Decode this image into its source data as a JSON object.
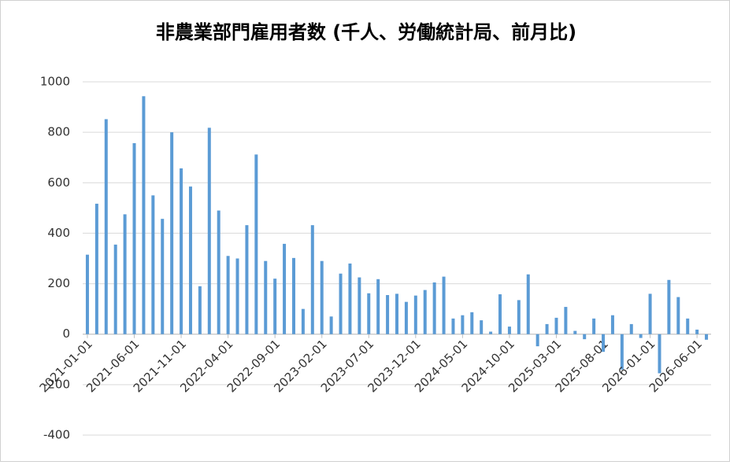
{
  "chart_data": {
    "type": "bar",
    "title": "非農業部門雇用者数 (千人、労働統計局、前月比)",
    "categories": [
      "2021-01-01",
      null,
      null,
      null,
      null,
      "2021-06-01",
      null,
      null,
      null,
      null,
      "2021-11-01",
      null,
      null,
      null,
      null,
      "2022-04-01",
      null,
      null,
      null,
      null,
      "2022-09-01",
      null,
      null,
      null,
      null,
      "2023-02-01",
      null,
      null,
      null,
      null,
      "2023-07-01",
      null,
      null,
      null,
      null,
      "2023-12-01",
      null,
      null,
      null,
      null,
      "2024-05-01",
      null,
      null,
      null,
      null,
      "2024-10-01",
      null,
      null,
      null,
      null,
      "2025-03-01",
      null,
      null,
      null,
      null,
      "2025-08-01",
      null,
      null,
      null,
      null,
      "2026-01-01",
      null,
      null,
      null,
      null,
      "2026-06-01",
      null
    ],
    "values": [
      315,
      517,
      852,
      355,
      475,
      757,
      943,
      550,
      457,
      800,
      657,
      585,
      190,
      818,
      490,
      310,
      300,
      432,
      712,
      290,
      220,
      358,
      302,
      100,
      432,
      290,
      70,
      240,
      280,
      225,
      162,
      218,
      155,
      160,
      128,
      153,
      175,
      205,
      228,
      62,
      75,
      87,
      55,
      10,
      158,
      30,
      135,
      237,
      -48,
      40,
      65,
      108,
      13,
      -20,
      62,
      -70,
      75,
      -140,
      40,
      -15,
      160,
      -155,
      215,
      147,
      62,
      18,
      -22
    ],
    "color": "#5b9bd5",
    "ylim": [
      -400,
      1000
    ],
    "yticks": [
      -400,
      -200,
      0,
      200,
      400,
      600,
      800,
      1000
    ],
    "grid": true
  }
}
